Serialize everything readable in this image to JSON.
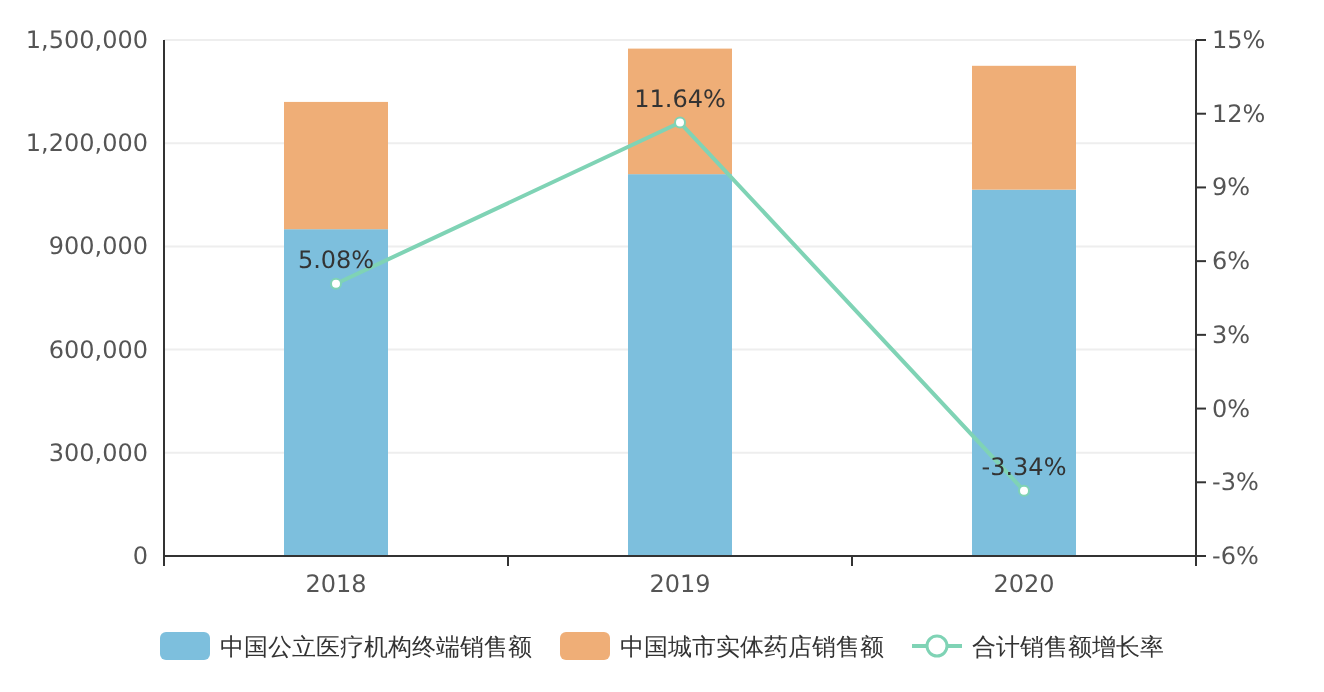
{
  "chart_data": {
    "type": "bar",
    "stacked": true,
    "categories": [
      "2018",
      "2019",
      "2020"
    ],
    "series": [
      {
        "name": "中国公立医疗机构终端销售额",
        "color": "#7dbfdd",
        "values": [
          950000,
          1110000,
          1065000
        ]
      },
      {
        "name": "中国城市实体药店销售额",
        "color": "#efae77",
        "values": [
          370000,
          365000,
          360000
        ]
      },
      {
        "name": "合计销售额增长率",
        "type": "line",
        "axis": "y2",
        "color": "#7fd3b5",
        "marker": "circle",
        "values": [
          5.08,
          11.64,
          -3.34
        ],
        "value_labels": [
          "5.08%",
          "11.64%",
          "-3.34%"
        ]
      }
    ],
    "ylim": [
      0,
      1500000
    ],
    "yticks": [
      {
        "value": 0,
        "label": "0"
      },
      {
        "value": 300000,
        "label": "300,000"
      },
      {
        "value": 600000,
        "label": "600,000"
      },
      {
        "value": 900000,
        "label": "900,000"
      },
      {
        "value": 1200000,
        "label": "1,200,000"
      },
      {
        "value": 1500000,
        "label": "1,500,000"
      }
    ],
    "y2lim": [
      -6,
      15
    ],
    "y2ticks": [
      {
        "value": -6,
        "label": "-6%"
      },
      {
        "value": -3,
        "label": "-3%"
      },
      {
        "value": 0,
        "label": "0%"
      },
      {
        "value": 3,
        "label": "3%"
      },
      {
        "value": 6,
        "label": "6%"
      },
      {
        "value": 9,
        "label": "9%"
      },
      {
        "value": 12,
        "label": "12%"
      },
      {
        "value": 15,
        "label": "15%"
      }
    ],
    "grid": "y",
    "legend": "bottom"
  }
}
